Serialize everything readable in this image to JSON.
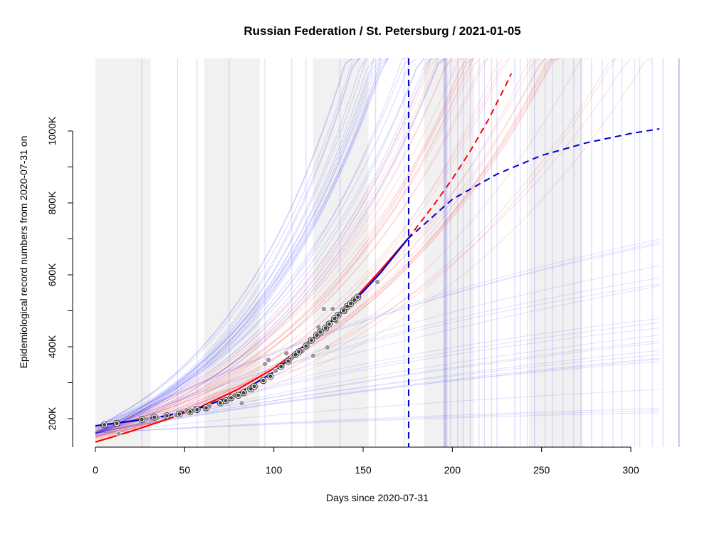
{
  "chart_data": {
    "type": "line",
    "title": "Russian Federation / St. Petersburg / 2021-01-05",
    "xlabel": "Days since 2020-07-31",
    "ylabel": "Epidemiological record numbers from 2020-07-31 on",
    "xlim": [
      0,
      316
    ],
    "ylim": [
      120000,
      1200000
    ],
    "x_ticks": [
      0,
      50,
      100,
      150,
      200,
      250,
      300
    ],
    "x_tick_labels": [
      "0",
      "50",
      "100",
      "150",
      "200",
      "250",
      "300"
    ],
    "y_ticks": [
      200000,
      400000,
      600000,
      800000,
      1000000
    ],
    "y_tick_labels": [
      "200K",
      "400K",
      "600K",
      "800K",
      "1000K"
    ],
    "shaded_bands": [
      [
        0,
        31
      ],
      [
        61,
        92
      ],
      [
        122,
        153
      ],
      [
        184,
        212
      ],
      [
        243,
        273
      ]
    ],
    "report_date_day": 175.5,
    "observed_points_white": [
      [
        5,
        183000
      ],
      [
        12,
        187000
      ],
      [
        26,
        198000
      ],
      [
        33,
        204000
      ],
      [
        40,
        208000
      ],
      [
        47,
        213000
      ],
      [
        53,
        219000
      ],
      [
        57,
        225000
      ],
      [
        62,
        230000
      ],
      [
        70,
        244000
      ],
      [
        73,
        250000
      ],
      [
        76,
        258000
      ],
      [
        80,
        265000
      ],
      [
        83,
        272000
      ],
      [
        87,
        283000
      ],
      [
        89,
        290000
      ],
      [
        94,
        306000
      ],
      [
        98,
        318000
      ],
      [
        104,
        345000
      ],
      [
        108,
        360000
      ],
      [
        112,
        378000
      ],
      [
        114,
        386000
      ],
      [
        118,
        402000
      ],
      [
        121,
        418000
      ],
      [
        124,
        432000
      ],
      [
        126,
        441000
      ],
      [
        129,
        452000
      ],
      [
        131,
        463000
      ],
      [
        134,
        478000
      ],
      [
        136,
        488000
      ],
      [
        139,
        501000
      ],
      [
        141,
        512000
      ],
      [
        143,
        520000
      ],
      [
        145,
        530000
      ],
      [
        147,
        538000
      ]
    ],
    "observed_points_grey": [
      [
        13,
        158000
      ],
      [
        29,
        199000
      ],
      [
        35,
        203000
      ],
      [
        45,
        210000
      ],
      [
        51,
        224000
      ],
      [
        56,
        230000
      ],
      [
        64,
        235000
      ],
      [
        75,
        258000
      ],
      [
        78,
        265000
      ],
      [
        82,
        243000
      ],
      [
        86,
        285000
      ],
      [
        95,
        352000
      ],
      [
        97,
        363000
      ],
      [
        101,
        333000
      ],
      [
        107,
        382000
      ],
      [
        110,
        368000
      ],
      [
        116,
        388000
      ],
      [
        119,
        410000
      ],
      [
        122,
        375000
      ],
      [
        125,
        455000
      ],
      [
        128,
        505000
      ],
      [
        130,
        398000
      ],
      [
        133,
        505000
      ],
      [
        135,
        470000
      ],
      [
        140,
        497000
      ],
      [
        142,
        520000
      ],
      [
        158,
        580000
      ]
    ],
    "series": [
      {
        "color": "#ff0000",
        "style": "solid-then-dashed",
        "x": [
          0,
          20,
          40,
          60,
          80,
          100,
          120,
          140,
          160,
          175,
          190,
          200,
          210,
          220,
          230,
          233
        ],
        "y": [
          135000,
          165000,
          198000,
          235000,
          282000,
          340000,
          414000,
          505000,
          614000,
          700000,
          797000,
          867000,
          944000,
          1030000,
          1128000,
          1160000
        ]
      },
      {
        "color": "#0000cc",
        "style": "solid-then-dashed",
        "x": [
          0,
          20,
          40,
          60,
          80,
          100,
          120,
          140,
          150,
          160,
          175,
          200,
          225,
          250,
          275,
          300,
          316
        ],
        "y": [
          180000,
          193000,
          208000,
          232000,
          270000,
          330000,
          414000,
          508000,
          553000,
          607000,
          700000,
          810000,
          880000,
          932000,
          967000,
          993000,
          1006000
        ]
      }
    ]
  }
}
